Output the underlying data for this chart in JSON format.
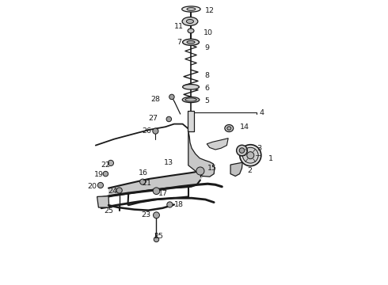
{
  "bg_color": "#ffffff",
  "line_color": "#1a1a1a",
  "gray_fill": "#c8c8c8",
  "gray_fill2": "#e0e0e0",
  "fig_w": 4.9,
  "fig_h": 3.6,
  "dpi": 100,
  "parts_labels": {
    "12": [
      0.538,
      0.038,
      "left"
    ],
    "11": [
      0.463,
      0.092,
      "right"
    ],
    "10": [
      0.532,
      0.115,
      "left"
    ],
    "7": [
      0.455,
      0.15,
      "right"
    ],
    "9": [
      0.538,
      0.168,
      "left"
    ],
    "8": [
      0.538,
      0.265,
      "left"
    ],
    "6": [
      0.538,
      0.31,
      "left"
    ],
    "28": [
      0.38,
      0.35,
      "right"
    ],
    "5": [
      0.538,
      0.355,
      "left"
    ],
    "27": [
      0.373,
      0.415,
      "right"
    ],
    "4": [
      0.73,
      0.395,
      "left"
    ],
    "26": [
      0.35,
      0.46,
      "right"
    ],
    "14": [
      0.66,
      0.445,
      "left"
    ],
    "3": [
      0.72,
      0.52,
      "left"
    ],
    "1": [
      0.762,
      0.556,
      "left"
    ],
    "2": [
      0.688,
      0.6,
      "left"
    ],
    "15": [
      0.548,
      0.59,
      "left"
    ],
    "13": [
      0.428,
      0.572,
      "right"
    ],
    "16": [
      0.34,
      0.608,
      "right"
    ],
    "22": [
      0.205,
      0.58,
      "right"
    ],
    "19": [
      0.183,
      0.613,
      "right"
    ],
    "21": [
      0.352,
      0.642,
      "right"
    ],
    "20": [
      0.158,
      0.654,
      "right"
    ],
    "24": [
      0.232,
      0.672,
      "right"
    ],
    "17": [
      0.408,
      0.678,
      "right"
    ],
    "25a": [
      0.218,
      0.74,
      "right"
    ],
    "18": [
      0.43,
      0.718,
      "left"
    ],
    "23": [
      0.348,
      0.754,
      "right"
    ],
    "25b": [
      0.358,
      0.83,
      "left"
    ]
  }
}
